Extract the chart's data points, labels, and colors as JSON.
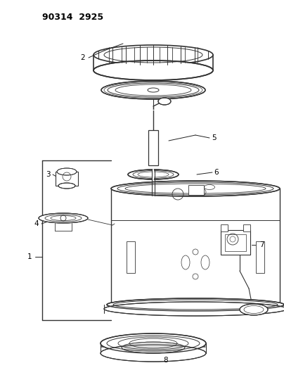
{
  "title": "90314  2925",
  "bg_color": "#ffffff",
  "lc": "#333333",
  "label_color": "#000000",
  "figsize": [
    4.04,
    5.33
  ],
  "dpi": 100
}
